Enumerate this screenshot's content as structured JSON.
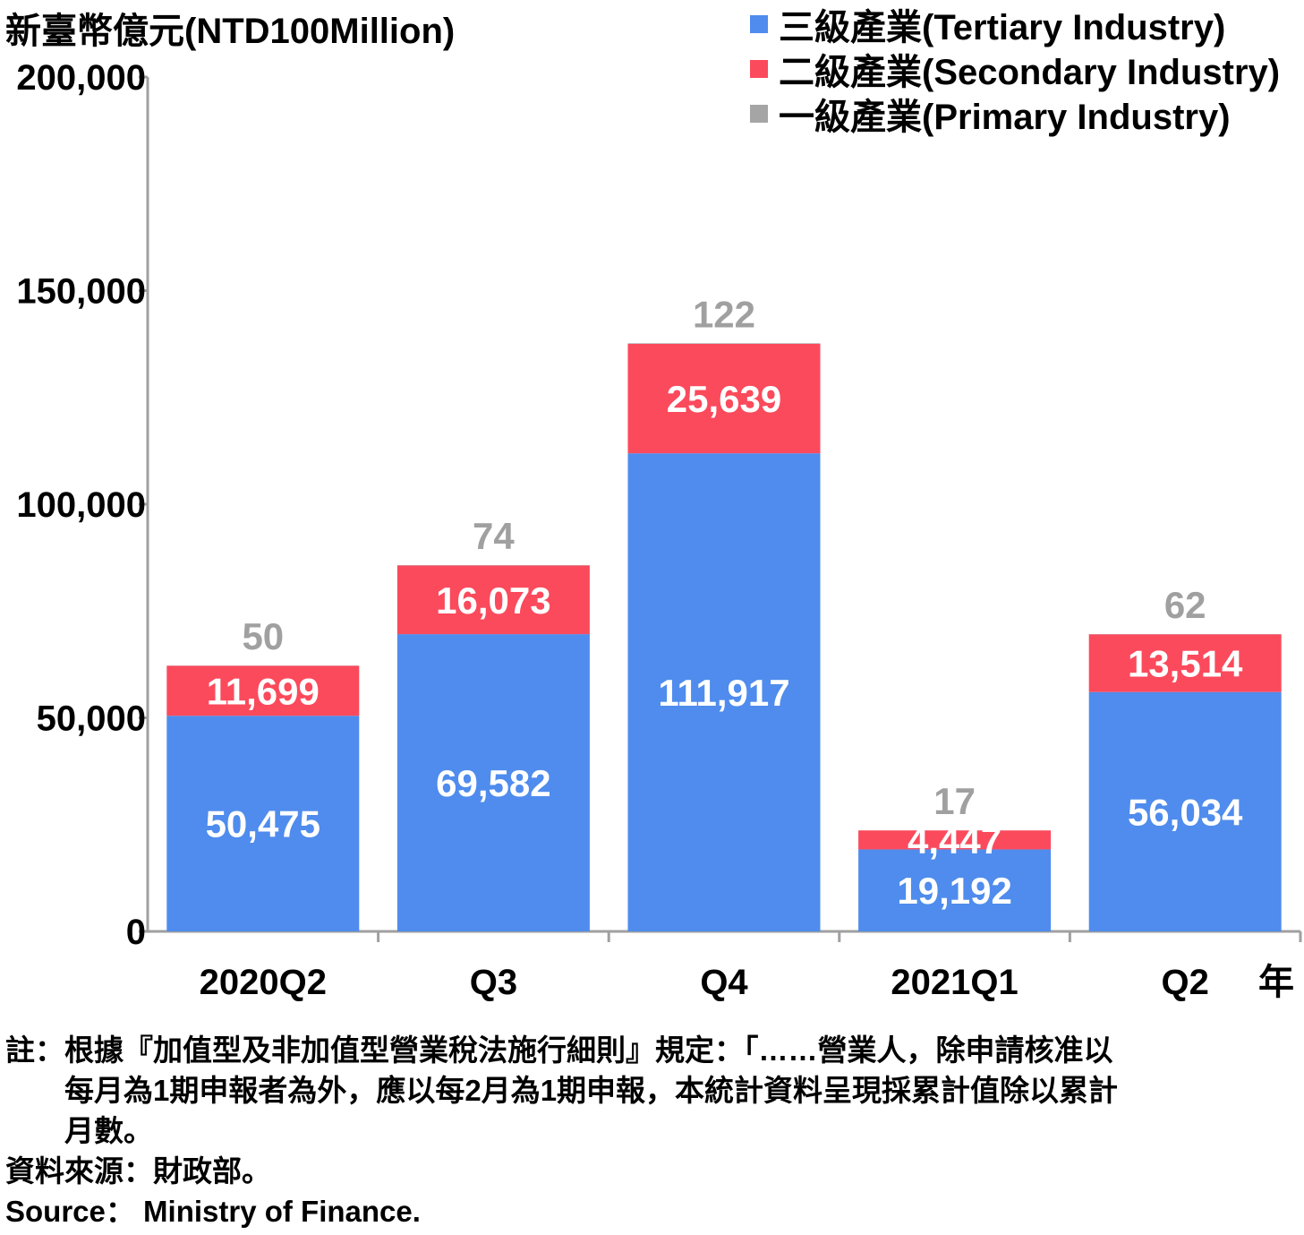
{
  "chart_data": {
    "type": "bar",
    "stacked": true,
    "ylabel": "新臺幣億元(NTD100Million)",
    "xunit": "年",
    "categories": [
      "2020Q2",
      "Q3",
      "Q4",
      "2021Q1",
      "Q2"
    ],
    "ylim": [
      0,
      200000
    ],
    "yticks": [
      "0",
      "50,000",
      "100,000",
      "150,000",
      "200,000"
    ],
    "ytick_values": [
      0,
      50000,
      100000,
      150000,
      200000
    ],
    "series": [
      {
        "name": "三級產業(Tertiary Industry)",
        "color": "#4f8ced",
        "values": [
          50475,
          69582,
          111917,
          19192,
          56034
        ],
        "labels": [
          "50,475",
          "69,582",
          "111,917",
          "19,192",
          "56,034"
        ]
      },
      {
        "name": "二級產業(Secondary Industry)",
        "color": "#fb4a5c",
        "values": [
          11699,
          16073,
          25639,
          4447,
          13514
        ],
        "labels": [
          "11,699",
          "16,073",
          "25,639",
          "4,447",
          "13,514"
        ]
      },
      {
        "name": "一級產業(Primary Industry)",
        "color": "#a5a5a5",
        "values": [
          50,
          74,
          122,
          17,
          62
        ],
        "labels": [
          "50",
          "74",
          "122",
          "17",
          "62"
        ]
      }
    ],
    "legend_position": "top-right",
    "grid": false
  },
  "notes": {
    "note_prefix": "註：",
    "note_lines": [
      "根據『加值型及非加值型營業稅法施行細則』規定：「……營業人，除申請核准以",
      "每月為1期申報者為外，應以每2月為1期申報，本統計資料呈現採累計值除以累計",
      "月數。"
    ],
    "source_zh": "資料來源：財政部。",
    "source_en": "Source： Ministry of Finance."
  },
  "colors": {
    "axis": "#a0a0a0",
    "tertiary_label": "#ffffff",
    "secondary_label": "#ffffff",
    "primary_label": "#a0a0a0"
  }
}
